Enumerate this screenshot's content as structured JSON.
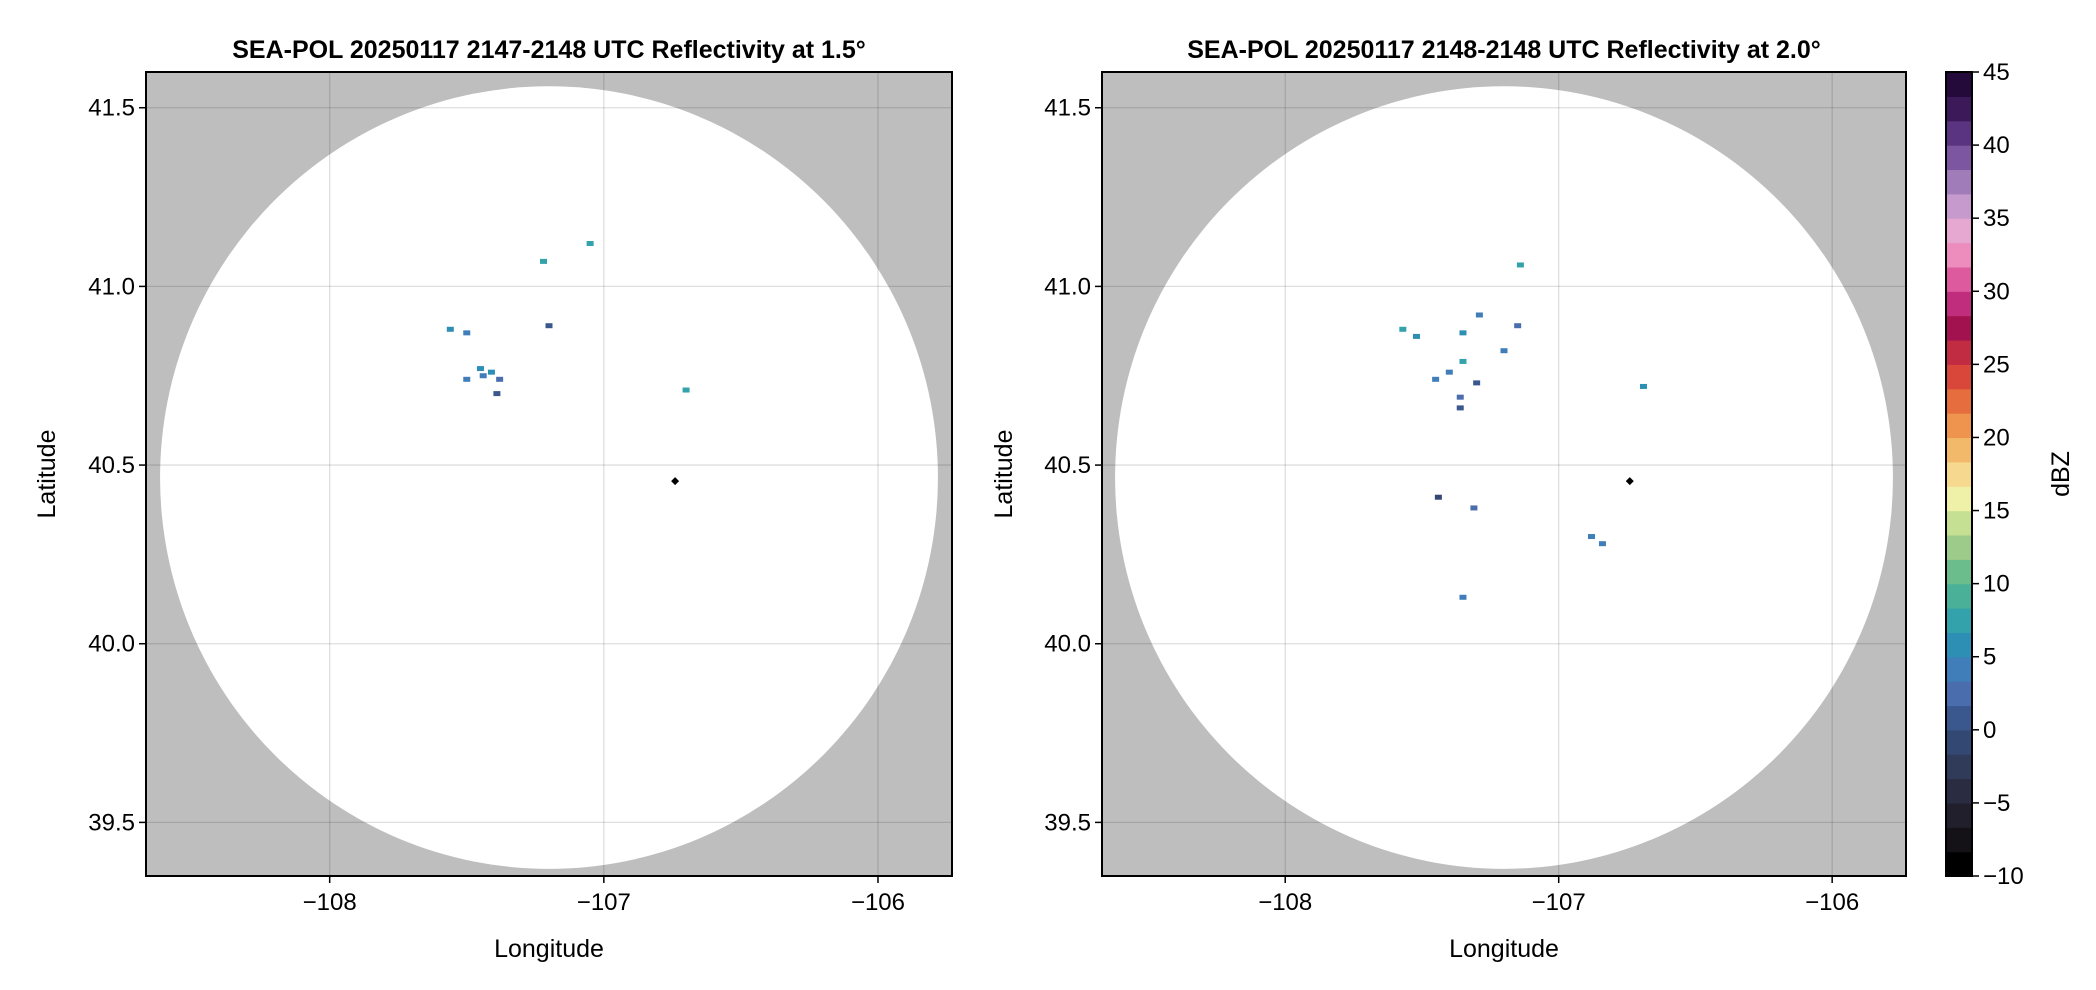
{
  "chart_data": [
    {
      "type": "heatmap",
      "title": "SEA-POL 20250117 2147-2148 UTC Reflectivity at 1.5°",
      "xlabel": "Longitude",
      "ylabel": "Latitude",
      "xlim": [
        -108.67,
        -105.73
      ],
      "ylim": [
        39.35,
        41.6
      ],
      "xticks": [
        -108,
        -107,
        -106
      ],
      "xtick_labels": [
        "−108",
        "−107",
        "−106"
      ],
      "yticks": [
        39.5,
        40.0,
        40.5,
        41.0,
        41.5
      ],
      "ytick_labels": [
        "39.5",
        "40.0",
        "40.5",
        "41.0",
        "41.5"
      ],
      "grid": true,
      "outside_range_color": "#bebebe",
      "radar_site": {
        "lon": -106.74,
        "lat": 40.455
      },
      "radar_range": {
        "center_lon": -107.2,
        "center_lat": 40.465,
        "radius_lat_deg": 1.095
      },
      "echoes": [
        {
          "lon": -107.44,
          "lat": 40.75,
          "dbz": 11
        },
        {
          "lon": -107.5,
          "lat": 40.74,
          "dbz": 10
        },
        {
          "lon": -107.38,
          "lat": 40.74,
          "dbz": 9
        },
        {
          "lon": -107.45,
          "lat": 40.77,
          "dbz": 13
        },
        {
          "lon": -107.41,
          "lat": 40.76,
          "dbz": 14
        },
        {
          "lon": -107.56,
          "lat": 40.88,
          "dbz": 13
        },
        {
          "lon": -107.5,
          "lat": 40.87,
          "dbz": 11
        },
        {
          "lon": -107.22,
          "lat": 41.07,
          "dbz": 15
        },
        {
          "lon": -107.05,
          "lat": 41.12,
          "dbz": 16
        },
        {
          "lon": -107.2,
          "lat": 40.89,
          "dbz": 7
        },
        {
          "lon": -106.7,
          "lat": 40.71,
          "dbz": 15
        },
        {
          "lon": -107.39,
          "lat": 40.7,
          "dbz": 5
        }
      ]
    },
    {
      "type": "heatmap",
      "title": "SEA-POL 20250117 2148-2148 UTC Reflectivity at 2.0°",
      "xlabel": "Longitude",
      "ylabel": "Latitude",
      "xlim": [
        -108.67,
        -105.73
      ],
      "ylim": [
        39.35,
        41.6
      ],
      "xticks": [
        -108,
        -107,
        -106
      ],
      "xtick_labels": [
        "−108",
        "−107",
        "−106"
      ],
      "yticks": [
        39.5,
        40.0,
        40.5,
        41.0,
        41.5
      ],
      "ytick_labels": [
        "39.5",
        "40.0",
        "40.5",
        "41.0",
        "41.5"
      ],
      "grid": true,
      "outside_range_color": "#bebebe",
      "radar_site": {
        "lon": -106.74,
        "lat": 40.455
      },
      "radar_range": {
        "center_lon": -107.2,
        "center_lat": 40.465,
        "radius_lat_deg": 1.095
      },
      "echoes": [
        {
          "lon": -107.4,
          "lat": 40.76,
          "dbz": 12
        },
        {
          "lon": -107.35,
          "lat": 40.79,
          "dbz": 16
        },
        {
          "lon": -107.45,
          "lat": 40.74,
          "dbz": 10
        },
        {
          "lon": -107.3,
          "lat": 40.73,
          "dbz": 6
        },
        {
          "lon": -107.36,
          "lat": 40.69,
          "dbz": 9
        },
        {
          "lon": -107.36,
          "lat": 40.66,
          "dbz": 5
        },
        {
          "lon": -107.2,
          "lat": 40.82,
          "dbz": 10
        },
        {
          "lon": -107.35,
          "lat": 40.87,
          "dbz": 13
        },
        {
          "lon": -107.29,
          "lat": 40.92,
          "dbz": 12
        },
        {
          "lon": -107.52,
          "lat": 40.86,
          "dbz": 14
        },
        {
          "lon": -107.57,
          "lat": 40.88,
          "dbz": 15
        },
        {
          "lon": -107.15,
          "lat": 40.89,
          "dbz": 9
        },
        {
          "lon": -107.14,
          "lat": 41.06,
          "dbz": 16
        },
        {
          "lon": -106.88,
          "lat": 40.3,
          "dbz": 10
        },
        {
          "lon": -106.84,
          "lat": 40.28,
          "dbz": 11
        },
        {
          "lon": -107.35,
          "lat": 40.13,
          "dbz": 10
        },
        {
          "lon": -107.44,
          "lat": 40.41,
          "dbz": 4
        },
        {
          "lon": -107.31,
          "lat": 40.38,
          "dbz": 8
        },
        {
          "lon": -106.69,
          "lat": 40.72,
          "dbz": 14
        }
      ]
    }
  ],
  "colorbar": {
    "label": "dBZ",
    "min": -10,
    "max": 45,
    "ticks": [
      -10,
      -5,
      0,
      5,
      10,
      15,
      20,
      25,
      30,
      35,
      40,
      45
    ],
    "tick_labels": [
      "−10",
      "−5",
      "0",
      "5",
      "10",
      "15",
      "20",
      "25",
      "30",
      "35",
      "40",
      "45"
    ],
    "step": 2.5,
    "colors": [
      "#000000",
      "#141217",
      "#201f2b",
      "#2a2c41",
      "#303a59",
      "#334873",
      "#3a588e",
      "#4a6dad",
      "#3f7eb8",
      "#2e8fb4",
      "#33a2ab",
      "#4ab098",
      "#6bbd8b",
      "#9ccb8a",
      "#c5df93",
      "#f0f1a9",
      "#f6d98f",
      "#f3b96a",
      "#ee944f",
      "#e66d3e",
      "#d9473a",
      "#c22c42",
      "#a1124f",
      "#c02d7c",
      "#de5a9f",
      "#ec8dbd",
      "#e6a7d0",
      "#c69acc",
      "#a07cb9",
      "#7c56a0",
      "#5a3480",
      "#3c1a5a",
      "#240a3a"
    ]
  }
}
